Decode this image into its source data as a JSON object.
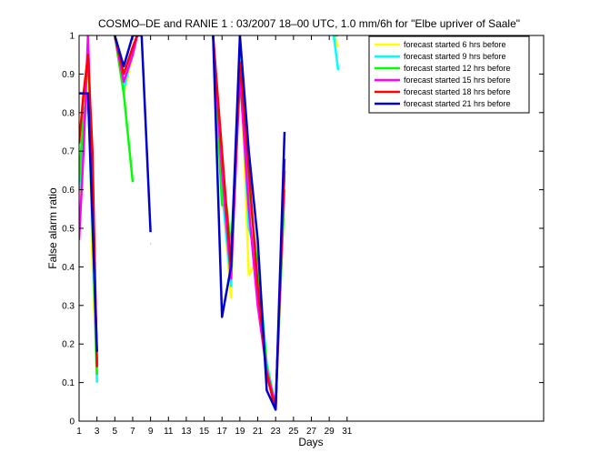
{
  "chart_data": {
    "type": "line",
    "title": "COSMO–DE and RANIE 1 : 03/2007 18–00 UTC, 1.0 mm/6h for \"Elbe upriver of Saale\"",
    "xlabel": "Days",
    "ylabel": "False alarm ratio",
    "xlim": [
      1,
      53
    ],
    "ylim": [
      0,
      1
    ],
    "xticks": [
      1,
      3,
      5,
      7,
      9,
      11,
      13,
      15,
      17,
      19,
      21,
      23,
      25,
      27,
      29,
      31
    ],
    "yticks": [
      0,
      0.1,
      0.2,
      0.3,
      0.4,
      0.5,
      0.6,
      0.7,
      0.8,
      0.9,
      1
    ],
    "ytick_labels": [
      "0",
      "0.1",
      "0.2",
      "0.3",
      "0.4",
      "0.5",
      "0.6",
      "0.7",
      "0.8",
      "0.9",
      "1"
    ],
    "legend_position": "top-right",
    "series": [
      {
        "name": "forecast started 6 hrs before",
        "color": "#ffff00",
        "segments": [
          [
            [
              1,
              0.5
            ],
            [
              1.5,
              0.8
            ],
            [
              2,
              0.95
            ],
            [
              2.5,
              0.4
            ],
            [
              3,
              0.1
            ]
          ],
          [
            [
              5,
              1.0
            ],
            [
              6,
              0.85
            ],
            [
              7,
              0.95
            ],
            [
              7.5,
              1.0
            ]
          ],
          [
            [
              16,
              1.0
            ],
            [
              17,
              0.6
            ],
            [
              18,
              0.32
            ],
            [
              19,
              0.97
            ],
            [
              20,
              0.38
            ],
            [
              21,
              0.42
            ],
            [
              22,
              0.15
            ],
            [
              23,
              0.04
            ],
            [
              24,
              0.6
            ]
          ],
          [
            [
              29.5,
              1.0
            ],
            [
              30,
              0.97
            ]
          ]
        ]
      },
      {
        "name": "forecast started 9 hrs before",
        "color": "#00ffff",
        "segments": [
          [
            [
              1,
              0.6
            ],
            [
              1.5,
              0.75
            ],
            [
              2,
              0.85
            ],
            [
              2.5,
              0.5
            ],
            [
              3,
              0.1
            ]
          ],
          [
            [
              5,
              1.0
            ],
            [
              6,
              0.86
            ],
            [
              7,
              0.96
            ],
            [
              7.5,
              1.0
            ]
          ],
          [
            [
              16,
              1.0
            ],
            [
              17,
              0.6
            ],
            [
              18,
              0.35
            ],
            [
              19,
              0.95
            ],
            [
              20,
              0.5
            ],
            [
              21,
              0.42
            ],
            [
              22,
              0.15
            ],
            [
              23,
              0.04
            ],
            [
              24,
              0.65
            ]
          ],
          [
            [
              29.5,
              1.0
            ],
            [
              30,
              0.91
            ]
          ]
        ]
      },
      {
        "name": "forecast started 12 hrs before",
        "color": "#00ff00",
        "segments": [
          [
            [
              1,
              0.62
            ],
            [
              1.5,
              0.8
            ],
            [
              2,
              0.85
            ],
            [
              2.5,
              0.55
            ],
            [
              3,
              0.12
            ]
          ],
          [
            [
              5,
              1.0
            ],
            [
              6,
              0.85
            ],
            [
              7,
              0.62
            ]
          ],
          [
            [
              9,
              0.46
            ],
            [
              9.05,
              0.46
            ]
          ],
          [
            [
              16,
              1.0
            ],
            [
              17,
              0.56
            ],
            [
              17.5,
              0.56
            ],
            [
              18,
              0.45
            ],
            [
              19,
              0.88
            ],
            [
              20,
              0.6
            ],
            [
              21,
              0.4
            ],
            [
              22,
              0.14
            ],
            [
              23,
              0.04
            ],
            [
              24,
              0.6
            ]
          ],
          [
            [
              29.5,
              1.0
            ],
            [
              30,
              1.0
            ]
          ]
        ]
      },
      {
        "name": "forecast started 15 hrs before",
        "color": "#ff00ff",
        "segments": [
          [
            [
              1,
              0.47
            ],
            [
              1.5,
              0.7
            ],
            [
              2,
              1.0
            ],
            [
              2.5,
              0.6
            ],
            [
              3,
              0.15
            ]
          ],
          [
            [
              5,
              1.0
            ],
            [
              6,
              0.88
            ],
            [
              7,
              0.95
            ],
            [
              7.5,
              1.0
            ]
          ],
          [
            [
              16,
              1.0
            ],
            [
              17,
              0.65
            ],
            [
              18,
              0.37
            ],
            [
              19,
              0.9
            ],
            [
              20,
              0.55
            ],
            [
              21,
              0.3
            ],
            [
              22,
              0.13
            ],
            [
              23,
              0.04
            ],
            [
              24,
              0.65
            ]
          ]
        ]
      },
      {
        "name": "forecast started 18 hrs before",
        "color": "#ff0000",
        "segments": [
          [
            [
              1,
              0.72
            ],
            [
              1.5,
              0.85
            ],
            [
              2,
              0.95
            ],
            [
              2.5,
              0.7
            ],
            [
              3,
              0.14
            ]
          ],
          [
            [
              5,
              1.0
            ],
            [
              6,
              0.9
            ],
            [
              7,
              0.97
            ],
            [
              7.5,
              1.0
            ]
          ],
          [
            [
              16,
              1.0
            ],
            [
              17,
              0.7
            ],
            [
              18,
              0.4
            ],
            [
              19,
              0.93
            ],
            [
              20,
              0.65
            ],
            [
              21,
              0.35
            ],
            [
              22,
              0.12
            ],
            [
              23,
              0.03
            ],
            [
              24,
              0.68
            ]
          ]
        ]
      },
      {
        "name": "forecast started 21 hrs before",
        "color": "#0000cc",
        "segments": [
          [
            [
              1,
              0.85
            ],
            [
              2,
              0.85
            ],
            [
              3,
              0.18
            ]
          ],
          [
            [
              5,
              1.0
            ],
            [
              6,
              0.92
            ],
            [
              7,
              1.0
            ],
            [
              8,
              1.0
            ],
            [
              9,
              0.49
            ]
          ],
          [
            [
              16,
              1.0
            ],
            [
              17,
              0.27
            ],
            [
              18,
              0.4
            ],
            [
              19,
              1.0
            ],
            [
              20,
              0.7
            ],
            [
              21,
              0.47
            ],
            [
              22,
              0.08
            ],
            [
              23,
              0.03
            ],
            [
              24,
              0.75
            ]
          ]
        ]
      }
    ]
  }
}
